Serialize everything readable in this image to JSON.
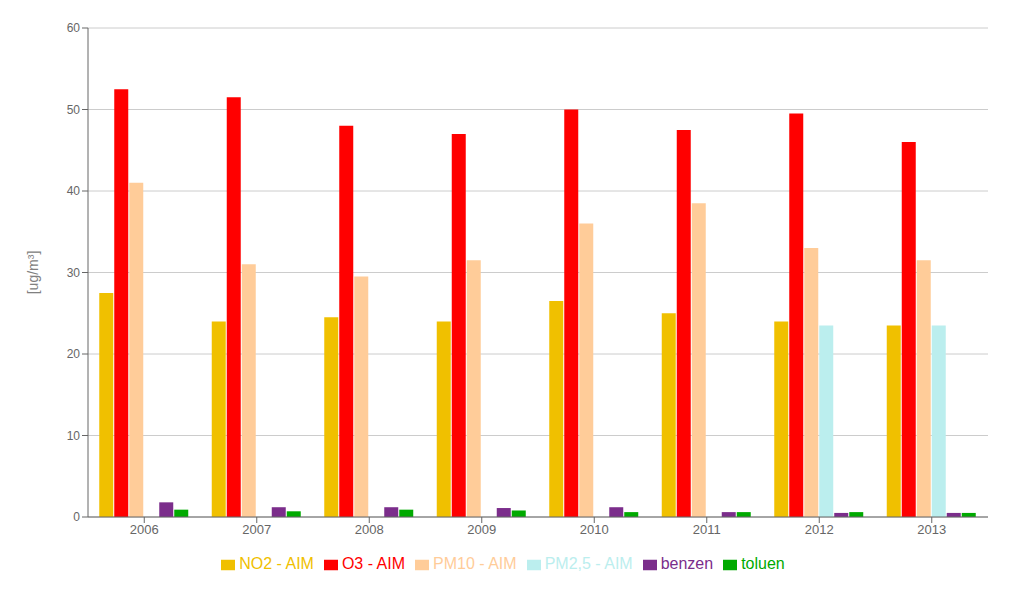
{
  "chart_data": {
    "type": "bar",
    "categories": [
      "2006",
      "2007",
      "2008",
      "2009",
      "2010",
      "2011",
      "2012",
      "2013"
    ],
    "series": [
      {
        "name": "NO2 - AIM",
        "values": [
          27.5,
          24.0,
          24.5,
          24.0,
          26.5,
          25.0,
          24.0,
          23.5
        ],
        "color": "#F0C000"
      },
      {
        "name": "O3 - AIM",
        "values": [
          52.5,
          51.5,
          48.0,
          47.0,
          50.0,
          47.5,
          49.5,
          46.0
        ],
        "color": "#FF0000"
      },
      {
        "name": "PM10 - AIM",
        "values": [
          41.0,
          31.0,
          29.5,
          31.5,
          36.0,
          38.5,
          33.0,
          31.5
        ],
        "color": "#FFCC99"
      },
      {
        "name": "PM2,5 - AIM",
        "values": [
          0.0,
          0.0,
          0.0,
          0.0,
          0.0,
          0.0,
          23.5,
          23.5
        ],
        "color": "#BBEEEE"
      },
      {
        "name": "benzen",
        "values": [
          1.8,
          1.2,
          1.2,
          1.1,
          1.2,
          0.6,
          0.5,
          0.5
        ],
        "color": "#7B2D8B"
      },
      {
        "name": "toluen",
        "values": [
          0.9,
          0.7,
          0.9,
          0.8,
          0.6,
          0.6,
          0.6,
          0.5
        ],
        "color": "#00AA00"
      }
    ],
    "ylabel": "[ug/m³]",
    "ylim": [
      0,
      60
    ],
    "yticks": [
      0,
      10,
      20,
      30,
      40,
      50,
      60
    ],
    "grid": true,
    "legend": "bottom"
  }
}
